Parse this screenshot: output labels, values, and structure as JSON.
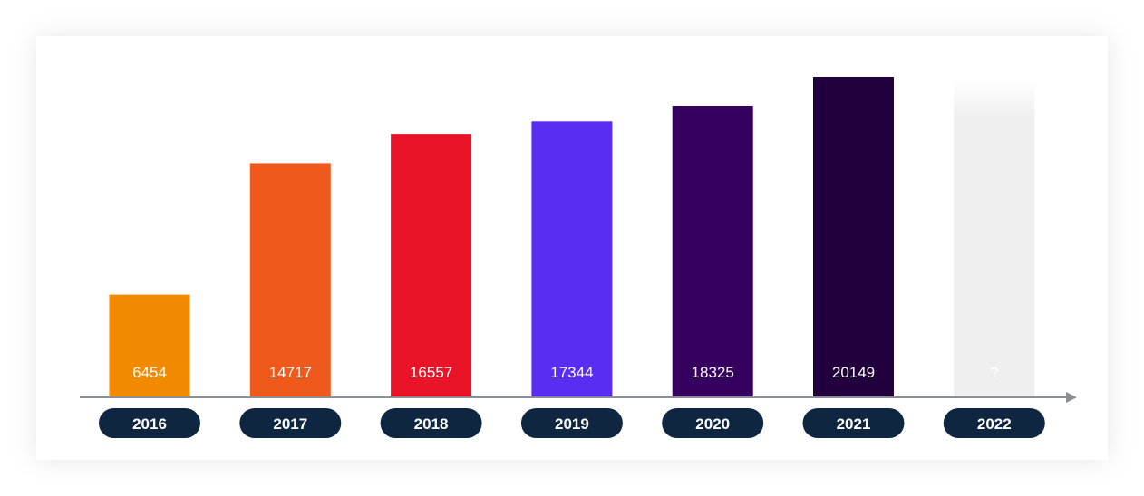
{
  "chart_data": {
    "type": "bar",
    "categories": [
      "2016",
      "2017",
      "2018",
      "2019",
      "2020",
      "2021",
      "2022"
    ],
    "values": [
      6454,
      14717,
      16557,
      17344,
      18325,
      20149,
      null
    ],
    "value_labels": [
      "6454",
      "14717",
      "16557",
      "17344",
      "18325",
      "20149",
      "?"
    ],
    "colors": [
      "#F28A00",
      "#EF5A1C",
      "#EA1428",
      "#5A2EF2",
      "#36005E",
      "#21003D",
      "#EFEFEF"
    ],
    "unknown_label_color": "#555555",
    "pill_color": "#0E2640",
    "axis_color": "#8A8F96",
    "grid": false,
    "title": "",
    "xlabel": "",
    "ylabel": ""
  }
}
